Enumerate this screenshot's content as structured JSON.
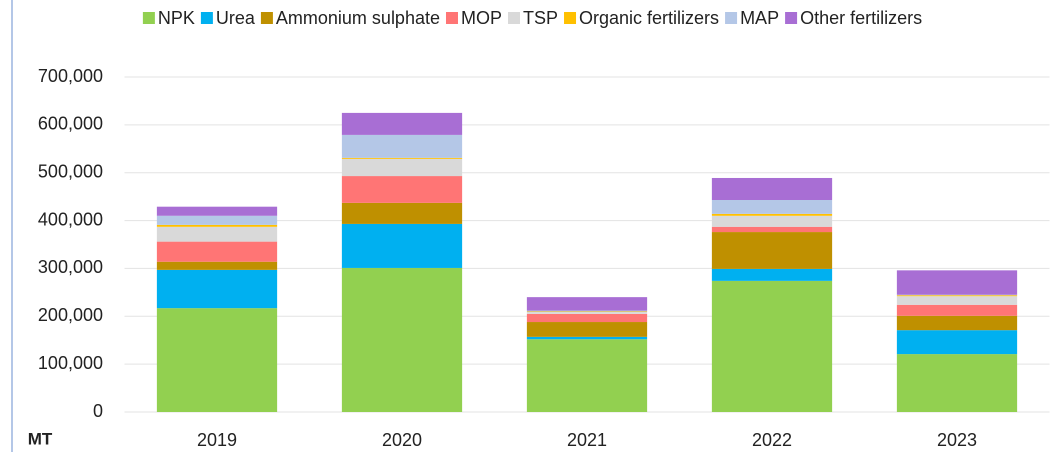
{
  "chart_data": {
    "type": "stacked_bar",
    "y_axis_label": "MT",
    "categories": [
      "2019",
      "2020",
      "2021",
      "2022",
      "2023"
    ],
    "series": [
      {
        "name": "NPK",
        "color": "#92d050",
        "values": [
          217000,
          301000,
          152000,
          274000,
          121000
        ]
      },
      {
        "name": "Urea",
        "color": "#00b0f0",
        "values": [
          80000,
          92000,
          5000,
          25000,
          50000
        ]
      },
      {
        "name": "Ammonium sulphate",
        "color": "#bf9000",
        "values": [
          17000,
          44000,
          31000,
          77000,
          30000
        ]
      },
      {
        "name": "MOP",
        "color": "#ff7575",
        "values": [
          42000,
          56000,
          17000,
          11000,
          23000
        ]
      },
      {
        "name": "TSP",
        "color": "#d9d9d9",
        "values": [
          31000,
          36000,
          4000,
          23000,
          18000
        ]
      },
      {
        "name": "Organic fertilizers",
        "color": "#ffc000",
        "values": [
          4000,
          2000,
          1000,
          4000,
          2000
        ]
      },
      {
        "name": "MAP",
        "color": "#b4c7e7",
        "values": [
          19000,
          48000,
          2000,
          29000,
          1000
        ]
      },
      {
        "name": "Other fertilizers",
        "color": "#a86ed4",
        "values": [
          19000,
          46000,
          28000,
          46000,
          51000
        ]
      }
    ],
    "ylim": [
      0,
      700000
    ],
    "yticks": [
      0,
      {
        "value": 100000,
        "label": "100,000"
      },
      {
        "value": 200000,
        "label": "200,000"
      },
      {
        "value": 300000,
        "label": "300,000"
      },
      {
        "value": 400000,
        "label": "400,000"
      },
      {
        "value": 500000,
        "label": "500,000"
      },
      {
        "value": 600000,
        "label": "600,000"
      },
      {
        "value": 700000,
        "label": "700,000"
      }
    ],
    "grid": true,
    "legend": "top"
  }
}
